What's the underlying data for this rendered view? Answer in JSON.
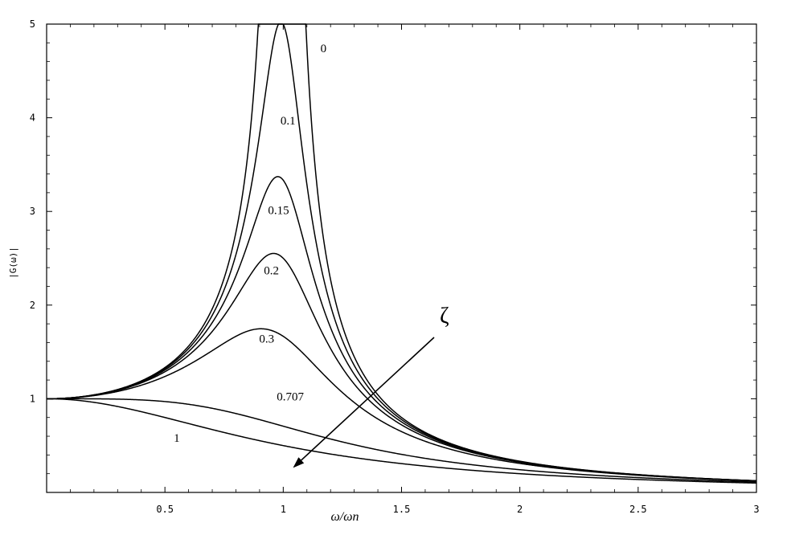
{
  "chart_data": {
    "type": "line",
    "title": "",
    "xlabel": "ω/ωn",
    "ylabel": "|G(ω)|",
    "xlim": [
      0,
      3
    ],
    "ylim": [
      0,
      5
    ],
    "x_ticks": [
      "0.5",
      "1",
      "1.5",
      "2",
      "2.5",
      "3"
    ],
    "y_ticks": [
      "1",
      "2",
      "3",
      "4",
      "5"
    ],
    "function": "|G| = 1 / sqrt((1 - r^2)^2 + (2*zeta*r)^2), r = ω/ωn",
    "series": [
      {
        "label": "0",
        "zeta": 0
      },
      {
        "label": "0.1",
        "zeta": 0.1
      },
      {
        "label": "0.15",
        "zeta": 0.15
      },
      {
        "label": "0.2",
        "zeta": 0.2
      },
      {
        "label": "0.3",
        "zeta": 0.3
      },
      {
        "label": "0.707",
        "zeta": 0.707
      },
      {
        "label": "1",
        "zeta": 1
      }
    ],
    "annotation": {
      "text": "ζ",
      "meaning": "arrow pointing toward increasing ζ"
    },
    "grid": false,
    "legend": "none"
  }
}
